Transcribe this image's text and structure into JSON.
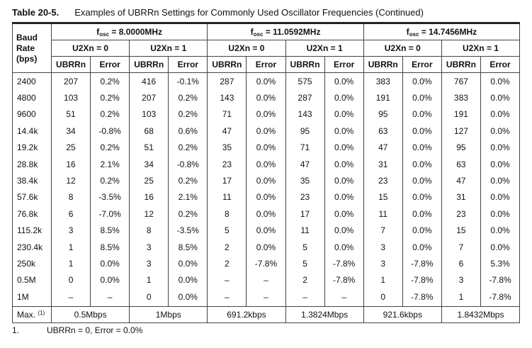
{
  "table_label": "Table 20-5.",
  "title": "Examples of UBRRn Settings for Commonly Used Oscillator Frequencies (Continued)",
  "header": {
    "baud": "Baud Rate (bps)",
    "freqs": [
      {
        "symbol": "f",
        "subscript": "osc",
        "value": "= 8.0000MHz",
        "modes": [
          {
            "label": "U2Xn = 0",
            "columns": [
              "UBRRn",
              "Error"
            ]
          },
          {
            "label": "U2Xn = 1",
            "columns": [
              "UBRRn",
              "Error"
            ]
          }
        ]
      },
      {
        "symbol": "f",
        "subscript": "osc",
        "value": "= 11.0592MHz",
        "modes": [
          {
            "label": "U2Xn = 0",
            "columns": [
              "UBRRn",
              "Error"
            ]
          },
          {
            "label": "U2Xn = 1",
            "columns": [
              "UBRRn",
              "Error"
            ]
          }
        ]
      },
      {
        "symbol": "f",
        "subscript": "osc",
        "value": "= 14.7456MHz",
        "modes": [
          {
            "label": "U2Xn = 0",
            "columns": [
              "UBRRn",
              "Error"
            ]
          },
          {
            "label": "U2Xn = 1",
            "columns": [
              "UBRRn",
              "Error"
            ]
          }
        ]
      }
    ]
  },
  "rows": [
    [
      "2400",
      "207",
      "0.2%",
      "416",
      "-0.1%",
      "287",
      "0.0%",
      "575",
      "0.0%",
      "383",
      "0.0%",
      "767",
      "0.0%"
    ],
    [
      "4800",
      "103",
      "0.2%",
      "207",
      "0.2%",
      "143",
      "0.0%",
      "287",
      "0.0%",
      "191",
      "0.0%",
      "383",
      "0.0%"
    ],
    [
      "9600",
      "51",
      "0.2%",
      "103",
      "0.2%",
      "71",
      "0.0%",
      "143",
      "0.0%",
      "95",
      "0.0%",
      "191",
      "0.0%"
    ],
    [
      "14.4k",
      "34",
      "-0.8%",
      "68",
      "0.6%",
      "47",
      "0.0%",
      "95",
      "0.0%",
      "63",
      "0.0%",
      "127",
      "0.0%"
    ],
    [
      "19.2k",
      "25",
      "0.2%",
      "51",
      "0.2%",
      "35",
      "0.0%",
      "71",
      "0.0%",
      "47",
      "0.0%",
      "95",
      "0.0%"
    ],
    [
      "28.8k",
      "16",
      "2.1%",
      "34",
      "-0.8%",
      "23",
      "0.0%",
      "47",
      "0.0%",
      "31",
      "0.0%",
      "63",
      "0.0%"
    ],
    [
      "38.4k",
      "12",
      "0.2%",
      "25",
      "0.2%",
      "17",
      "0.0%",
      "35",
      "0.0%",
      "23",
      "0.0%",
      "47",
      "0.0%"
    ],
    [
      "57.6k",
      "8",
      "-3.5%",
      "16",
      "2.1%",
      "11",
      "0.0%",
      "23",
      "0.0%",
      "15",
      "0.0%",
      "31",
      "0.0%"
    ],
    [
      "76.8k",
      "6",
      "-7.0%",
      "12",
      "0.2%",
      "8",
      "0.0%",
      "17",
      "0.0%",
      "11",
      "0.0%",
      "23",
      "0.0%"
    ],
    [
      "115.2k",
      "3",
      "8.5%",
      "8",
      "-3.5%",
      "5",
      "0.0%",
      "11",
      "0.0%",
      "7",
      "0.0%",
      "15",
      "0.0%"
    ],
    [
      "230.4k",
      "1",
      "8.5%",
      "3",
      "8.5%",
      "2",
      "0.0%",
      "5",
      "0.0%",
      "3",
      "0.0%",
      "7",
      "0.0%"
    ],
    [
      "250k",
      "1",
      "0.0%",
      "3",
      "0.0%",
      "2",
      "-7.8%",
      "5",
      "-7.8%",
      "3",
      "-7.8%",
      "6",
      "5.3%"
    ],
    [
      "0.5M",
      "0",
      "0.0%",
      "1",
      "0.0%",
      "–",
      "–",
      "2",
      "-7.8%",
      "1",
      "-7.8%",
      "3",
      "-7.8%"
    ],
    [
      "1M",
      "–",
      "–",
      "0",
      "0.0%",
      "–",
      "–",
      "–",
      "–",
      "0",
      "-7.8%",
      "1",
      "-7.8%"
    ]
  ],
  "footer": {
    "label": "Max.",
    "note_ref": "(1)",
    "values": [
      "0.5Mbps",
      "1Mbps",
      "691.2kbps",
      "1.3824Mbps",
      "921.6kbps",
      "1.8432Mbps"
    ]
  },
  "footnote": {
    "number": "1.",
    "text": "UBRRn = 0, Error = 0.0%"
  }
}
